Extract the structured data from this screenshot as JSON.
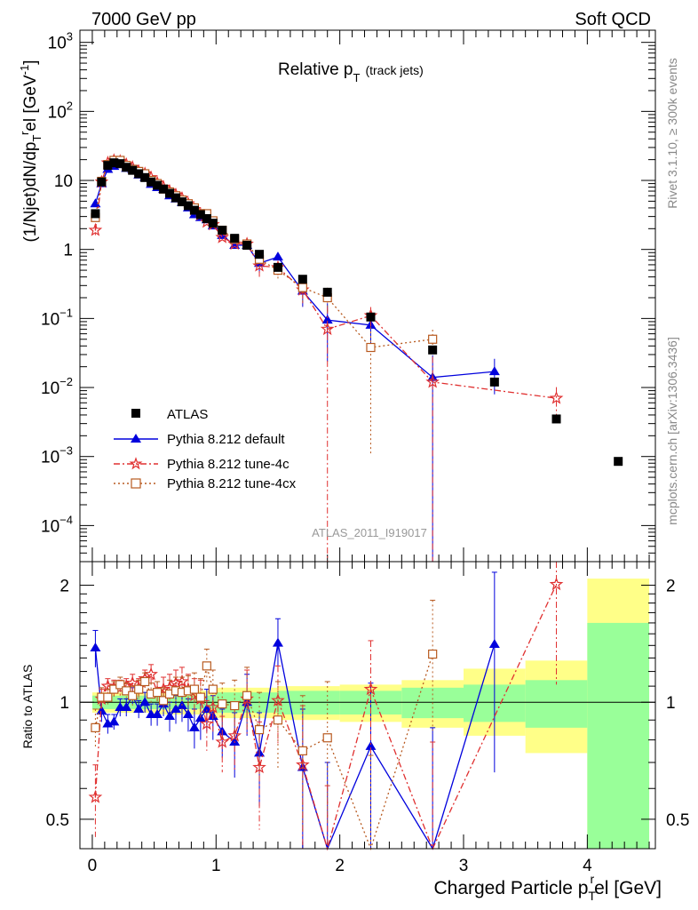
{
  "header": {
    "left": "7000 GeV pp",
    "right": "Soft QCD"
  },
  "side_labels": {
    "rivet": "Rivet 3.1.10, ≥ 300k events",
    "mcplots": "mcplots.cern.ch [arXiv:1306.3436]"
  },
  "chart_data": {
    "type": "line",
    "title": "Relative p_T (track jets)",
    "title_main": "Relative p",
    "title_sub": "T",
    "title_note": "(track jets)",
    "analysis_id": "ATLAS_2011_I919017",
    "xlabel": "Charged Particle p_T^rel [GeV]",
    "xlabel_main": "Charged Particle p",
    "xlabel_sub": "T",
    "xlabel_sup": "r",
    "xlabel_tail": "el [GeV]",
    "ylabel": "(1/Njet)dN/dp_T^rel [GeV^-1]",
    "ylabel_parts": {
      "a": "(1/Njet)dN/dp",
      "sub": "T",
      "sup": "r",
      "b": "el [GeV",
      "sup2": "-1",
      "c": "]"
    },
    "ratio_ylabel": "Ratio to ATLAS",
    "xlim": [
      -0.1,
      4.55
    ],
    "ylim_log": [
      3e-05,
      1500
    ],
    "ratio_ylim": [
      0.42,
      2.3
    ],
    "x_ticks": [
      0,
      1,
      2,
      3,
      4
    ],
    "y_ticks": [
      {
        "label": "10",
        "exp": "3",
        "value": 1000
      },
      {
        "label": "10",
        "exp": "2",
        "value": 100
      },
      {
        "label": "10",
        "exp": "",
        "value": 10
      },
      {
        "label": "1",
        "exp": "",
        "value": 1
      },
      {
        "label": "10",
        "exp": "−1",
        "value": 0.1
      },
      {
        "label": "10",
        "exp": "−2",
        "value": 0.01
      },
      {
        "label": "10",
        "exp": "−3",
        "value": 0.001
      },
      {
        "label": "10",
        "exp": "−4",
        "value": 0.0001
      }
    ],
    "ratio_ticks": [
      {
        "label": "0.5",
        "value": 0.5
      },
      {
        "label": "1",
        "value": 1
      },
      {
        "label": "2",
        "value": 2
      }
    ],
    "legend": [
      "ATLAS",
      "Pythia 8.212 default",
      "Pythia 8.212 tune-4c",
      "Pythia 8.212 tune-4cx"
    ],
    "colors": {
      "data": "#000000",
      "default": "#0000dd",
      "tune4c": "#e03030",
      "tune4cx": "#b85a20",
      "band_inner": "#99ff99",
      "band_outer": "#ffff88"
    },
    "series": [
      {
        "name": "ATLAS",
        "x": [
          0.025,
          0.075,
          0.125,
          0.175,
          0.225,
          0.275,
          0.325,
          0.375,
          0.425,
          0.475,
          0.525,
          0.575,
          0.625,
          0.675,
          0.725,
          0.775,
          0.825,
          0.875,
          0.925,
          0.975,
          1.05,
          1.15,
          1.25,
          1.35,
          1.5,
          1.7,
          1.9,
          2.25,
          2.75,
          3.25,
          3.75,
          4.25
        ],
        "y": [
          3.3,
          9.5,
          16.5,
          18.0,
          17.5,
          15.5,
          14.0,
          12.5,
          11.0,
          9.5,
          8.5,
          7.5,
          6.5,
          5.6,
          4.9,
          4.3,
          3.7,
          3.2,
          2.8,
          2.4,
          1.9,
          1.45,
          1.15,
          0.85,
          0.55,
          0.37,
          0.24,
          0.105,
          0.035,
          0.012,
          0.0035,
          0.00085
        ]
      },
      {
        "name": "Pythia 8.212 default",
        "x": [
          0.025,
          0.075,
          0.125,
          0.175,
          0.225,
          0.275,
          0.325,
          0.375,
          0.425,
          0.475,
          0.525,
          0.575,
          0.625,
          0.675,
          0.725,
          0.775,
          0.825,
          0.875,
          0.925,
          0.975,
          1.05,
          1.15,
          1.25,
          1.35,
          1.5,
          1.7,
          1.9,
          2.25,
          2.75,
          3.25
        ],
        "y": [
          4.6,
          9.0,
          14.5,
          16.0,
          17.0,
          15.0,
          14.5,
          12.0,
          11.0,
          8.8,
          7.9,
          7.4,
          6.0,
          5.4,
          4.8,
          4.0,
          3.2,
          2.9,
          2.7,
          2.2,
          1.6,
          1.15,
          1.15,
          0.63,
          0.78,
          0.25,
          0.095,
          0.08,
          0.014,
          0.017
        ],
        "ratio": [
          1.38,
          0.95,
          0.88,
          0.89,
          0.97,
          0.97,
          1.04,
          0.96,
          1.0,
          0.93,
          0.93,
          0.99,
          0.92,
          0.96,
          0.98,
          0.93,
          0.86,
          0.91,
          0.96,
          0.92,
          0.84,
          0.79,
          1.0,
          0.74,
          1.42,
          0.68,
          0.4,
          0.77,
          0.41,
          1.41
        ],
        "ratio_err": [
          0.15,
          0.06,
          0.05,
          0.04,
          0.05,
          0.05,
          0.05,
          0.05,
          0.06,
          0.06,
          0.06,
          0.07,
          0.08,
          0.08,
          0.09,
          0.09,
          0.1,
          0.11,
          0.12,
          0.12,
          0.12,
          0.15,
          0.18,
          0.2,
          0.22,
          0.28,
          0.3,
          0.35,
          0.45,
          0.75
        ]
      },
      {
        "name": "Pythia 8.212 tune-4c",
        "x": [
          0.025,
          0.075,
          0.125,
          0.175,
          0.225,
          0.275,
          0.325,
          0.375,
          0.425,
          0.475,
          0.525,
          0.575,
          0.625,
          0.675,
          0.725,
          0.775,
          0.825,
          0.875,
          0.925,
          0.975,
          1.05,
          1.15,
          1.25,
          1.35,
          1.5,
          1.7,
          1.9,
          2.25,
          2.75,
          3.75
        ],
        "y": [
          1.9,
          9.5,
          18.0,
          19.5,
          19.0,
          17.0,
          15.5,
          13.5,
          12.5,
          11.0,
          9.2,
          8.0,
          7.0,
          6.2,
          5.5,
          4.6,
          3.8,
          3.2,
          2.5,
          2.3,
          1.5,
          1.2,
          1.2,
          0.58,
          0.55,
          0.26,
          0.07,
          0.11,
          0.012,
          0.007
        ],
        "ratio": [
          0.57,
          1.02,
          1.1,
          1.09,
          1.09,
          1.1,
          1.12,
          1.09,
          1.15,
          1.18,
          1.06,
          1.08,
          1.09,
          1.12,
          1.13,
          1.08,
          1.04,
          1.02,
          0.88,
          0.97,
          0.79,
          0.82,
          1.02,
          0.68,
          1.01,
          0.69,
          0.29,
          1.08,
          0.34,
          2.01
        ],
        "ratio_err": [
          0.12,
          0.06,
          0.05,
          0.05,
          0.05,
          0.05,
          0.06,
          0.06,
          0.06,
          0.07,
          0.07,
          0.08,
          0.09,
          0.09,
          0.1,
          0.1,
          0.11,
          0.12,
          0.13,
          0.13,
          0.13,
          0.16,
          0.19,
          0.21,
          0.23,
          0.29,
          0.32,
          0.36,
          0.45,
          0.9
        ]
      },
      {
        "name": "Pythia 8.212 tune-4cx",
        "x": [
          0.025,
          0.075,
          0.125,
          0.175,
          0.225,
          0.275,
          0.325,
          0.375,
          0.425,
          0.475,
          0.525,
          0.575,
          0.625,
          0.675,
          0.725,
          0.775,
          0.825,
          0.875,
          0.925,
          0.975,
          1.05,
          1.15,
          1.25,
          1.35,
          1.5,
          1.7,
          1.9,
          2.25,
          2.75
        ],
        "y": [
          2.9,
          9.7,
          17.0,
          19.5,
          19.5,
          16.5,
          14.5,
          13.5,
          12.5,
          10.0,
          9.0,
          7.5,
          6.8,
          6.0,
          5.2,
          4.6,
          4.0,
          3.3,
          3.3,
          2.6,
          1.9,
          1.4,
          1.2,
          0.72,
          0.5,
          0.28,
          0.2,
          0.038,
          0.05
        ],
        "ratio": [
          0.86,
          1.03,
          1.03,
          1.08,
          1.11,
          1.07,
          1.04,
          1.08,
          1.13,
          1.05,
          1.06,
          1.01,
          1.05,
          1.07,
          1.06,
          1.07,
          1.08,
          1.03,
          1.24,
          1.08,
          0.99,
          0.98,
          1.04,
          0.85,
          0.9,
          0.75,
          0.81,
          0.37,
          1.33
        ],
        "ratio_err": [
          0.1,
          0.06,
          0.05,
          0.05,
          0.05,
          0.05,
          0.06,
          0.06,
          0.06,
          0.07,
          0.07,
          0.08,
          0.09,
          0.09,
          0.1,
          0.1,
          0.11,
          0.12,
          0.13,
          0.13,
          0.13,
          0.16,
          0.19,
          0.21,
          0.23,
          0.29,
          0.32,
          0.36,
          0.5
        ]
      }
    ],
    "uncertainty_bands": {
      "edges": [
        0,
        0.5,
        1,
        1.5,
        2,
        2.5,
        3,
        3.5,
        4,
        4.5
      ],
      "inner": [
        [
          0.96,
          1.04
        ],
        [
          0.96,
          1.04
        ],
        [
          0.94,
          1.06
        ],
        [
          0.93,
          1.07
        ],
        [
          0.93,
          1.07
        ],
        [
          0.91,
          1.09
        ],
        [
          0.89,
          1.11
        ],
        [
          0.86,
          1.14
        ],
        [
          0.42,
          1.6
        ],
        [
          0.42,
          1.6
        ]
      ],
      "outer": [
        [
          0.94,
          1.06
        ],
        [
          0.93,
          1.07
        ],
        [
          0.91,
          1.09
        ],
        [
          0.9,
          1.1
        ],
        [
          0.89,
          1.11
        ],
        [
          0.86,
          1.14
        ],
        [
          0.82,
          1.22
        ],
        [
          0.74,
          1.28
        ],
        [
          0.42,
          2.08
        ],
        [
          0.42,
          2.08
        ]
      ]
    }
  }
}
